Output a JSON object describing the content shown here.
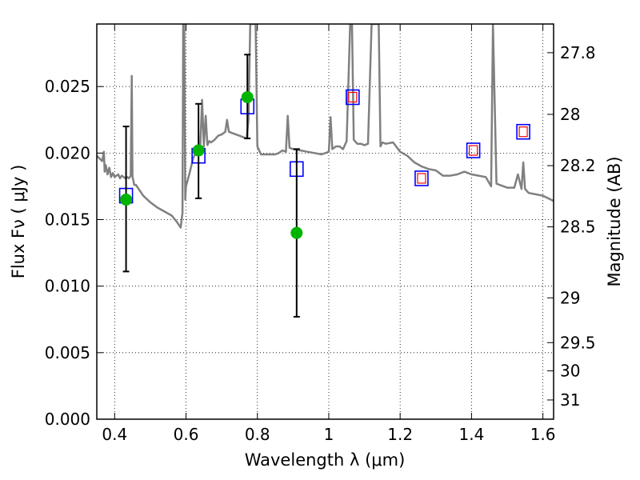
{
  "chart_data": {
    "type": "scatter",
    "xlabel": "Wavelength  λ (μm)",
    "ylabel": "Flux  Fν  ( μJy )",
    "y2label": "Magnitude (AB)",
    "xlim": [
      0.35,
      1.63
    ],
    "ylim": [
      0.0,
      0.0297
    ],
    "grid": true,
    "x_ticks": [
      0.4,
      0.6,
      0.8,
      1.0,
      1.2,
      1.4,
      1.6
    ],
    "x_tick_labels": [
      "0.4",
      "0.6",
      "0.8",
      "1",
      "1.2",
      "1.4",
      "1.6"
    ],
    "y_ticks": [
      0.0,
      0.005,
      0.01,
      0.015,
      0.02,
      0.025
    ],
    "y_tick_labels": [
      "0.000",
      "0.005",
      "0.010",
      "0.015",
      "0.020",
      "0.025"
    ],
    "mag_ticks": [
      27.8,
      28.0,
      28.2,
      28.5,
      29.0,
      29.5,
      30.0,
      31.0
    ],
    "mag_tick_labels": [
      "27.8",
      "28",
      "28.2",
      "28.5",
      "29",
      "29.5",
      "30",
      "31"
    ],
    "series": [
      {
        "type": "line",
        "color": "#808080",
        "x": [
          0.35,
          0.365,
          0.37,
          0.372,
          0.375,
          0.38,
          0.385,
          0.39,
          0.395,
          0.4,
          0.405,
          0.41,
          0.415,
          0.42,
          0.425,
          0.43,
          0.435,
          0.44,
          0.445,
          0.448,
          0.45,
          0.452,
          0.455,
          0.46,
          0.47,
          0.48,
          0.5,
          0.52,
          0.54,
          0.56,
          0.575,
          0.585,
          0.59,
          0.592,
          0.595,
          0.598,
          0.6,
          0.61,
          0.62,
          0.63,
          0.64,
          0.645,
          0.65,
          0.655,
          0.66,
          0.665,
          0.67,
          0.68,
          0.69,
          0.7,
          0.71,
          0.715,
          0.72,
          0.73,
          0.74,
          0.75,
          0.76,
          0.77,
          0.775,
          0.78,
          0.785,
          0.79,
          0.795,
          0.8,
          0.805,
          0.81,
          0.82,
          0.83,
          0.85,
          0.86,
          0.87,
          0.88,
          0.885,
          0.89,
          0.9,
          0.92,
          0.94,
          0.96,
          0.98,
          1.0,
          1.005,
          1.01,
          1.02,
          1.03,
          1.04,
          1.05,
          1.06,
          1.065,
          1.07,
          1.08,
          1.09,
          1.1,
          1.11,
          1.12,
          1.13,
          1.14,
          1.145,
          1.15,
          1.16,
          1.18,
          1.2,
          1.22,
          1.24,
          1.26,
          1.28,
          1.3,
          1.32,
          1.34,
          1.36,
          1.38,
          1.4,
          1.42,
          1.44,
          1.455,
          1.46,
          1.47,
          1.48,
          1.5,
          1.52,
          1.53,
          1.54,
          1.545,
          1.55,
          1.56,
          1.58,
          1.6,
          1.63
        ],
        "y": [
          0.0198,
          0.0194,
          0.0201,
          0.0186,
          0.0191,
          0.0184,
          0.0189,
          0.0182,
          0.0185,
          0.0182,
          0.0183,
          0.0184,
          0.0181,
          0.0183,
          0.0182,
          0.0181,
          0.0182,
          0.0181,
          0.0183,
          0.0258,
          0.0182,
          0.018,
          0.0176,
          0.0176,
          0.0172,
          0.0168,
          0.0163,
          0.0159,
          0.0156,
          0.0153,
          0.0148,
          0.0144,
          0.0155,
          0.0297,
          0.0297,
          0.0165,
          0.0175,
          0.0185,
          0.0196,
          0.0202,
          0.0206,
          0.024,
          0.0205,
          0.0228,
          0.0206,
          0.0209,
          0.0208,
          0.021,
          0.0213,
          0.0214,
          0.0216,
          0.0225,
          0.0216,
          0.0215,
          0.0214,
          0.0213,
          0.0212,
          0.0211,
          0.0225,
          0.0297,
          0.0297,
          0.0297,
          0.0297,
          0.0205,
          0.0202,
          0.0199,
          0.0199,
          0.0199,
          0.0199,
          0.02,
          0.0202,
          0.0201,
          0.0228,
          0.0204,
          0.0203,
          0.0202,
          0.0201,
          0.02,
          0.0199,
          0.0201,
          0.0227,
          0.0203,
          0.0205,
          0.0205,
          0.0203,
          0.0209,
          0.0297,
          0.0297,
          0.021,
          0.0207,
          0.0207,
          0.0206,
          0.0207,
          0.0297,
          0.0297,
          0.0297,
          0.0205,
          0.0208,
          0.0207,
          0.0208,
          0.0201,
          0.0198,
          0.0193,
          0.019,
          0.0188,
          0.0187,
          0.0183,
          0.0183,
          0.0184,
          0.0186,
          0.0184,
          0.0183,
          0.0182,
          0.0175,
          0.0297,
          0.0177,
          0.0176,
          0.0174,
          0.0174,
          0.0184,
          0.0173,
          0.0193,
          0.0173,
          0.017,
          0.0169,
          0.0168,
          0.0164
        ]
      },
      {
        "type": "open-square",
        "color": "#0000ff",
        "x": [
          0.432,
          0.635,
          0.772,
          0.91
        ],
        "y": [
          0.0168,
          0.0198,
          0.0235,
          0.0188
        ]
      },
      {
        "type": "double-square",
        "outer_color": "#0000ff",
        "inner_color": "#ff0000",
        "x": [
          1.067,
          1.26,
          1.405,
          1.545
        ],
        "y": [
          0.0242,
          0.0181,
          0.0202,
          0.0216
        ]
      },
      {
        "type": "filled-circle",
        "color": "#00b400",
        "x": [
          0.432,
          0.635,
          0.772,
          0.91
        ],
        "y": [
          0.0165,
          0.0202,
          0.0242,
          0.014
        ],
        "yerr_low": [
          0.0111,
          0.0166,
          0.0211,
          0.0077
        ],
        "yerr_high": [
          0.022,
          0.0237,
          0.0274,
          0.0203
        ]
      }
    ]
  }
}
